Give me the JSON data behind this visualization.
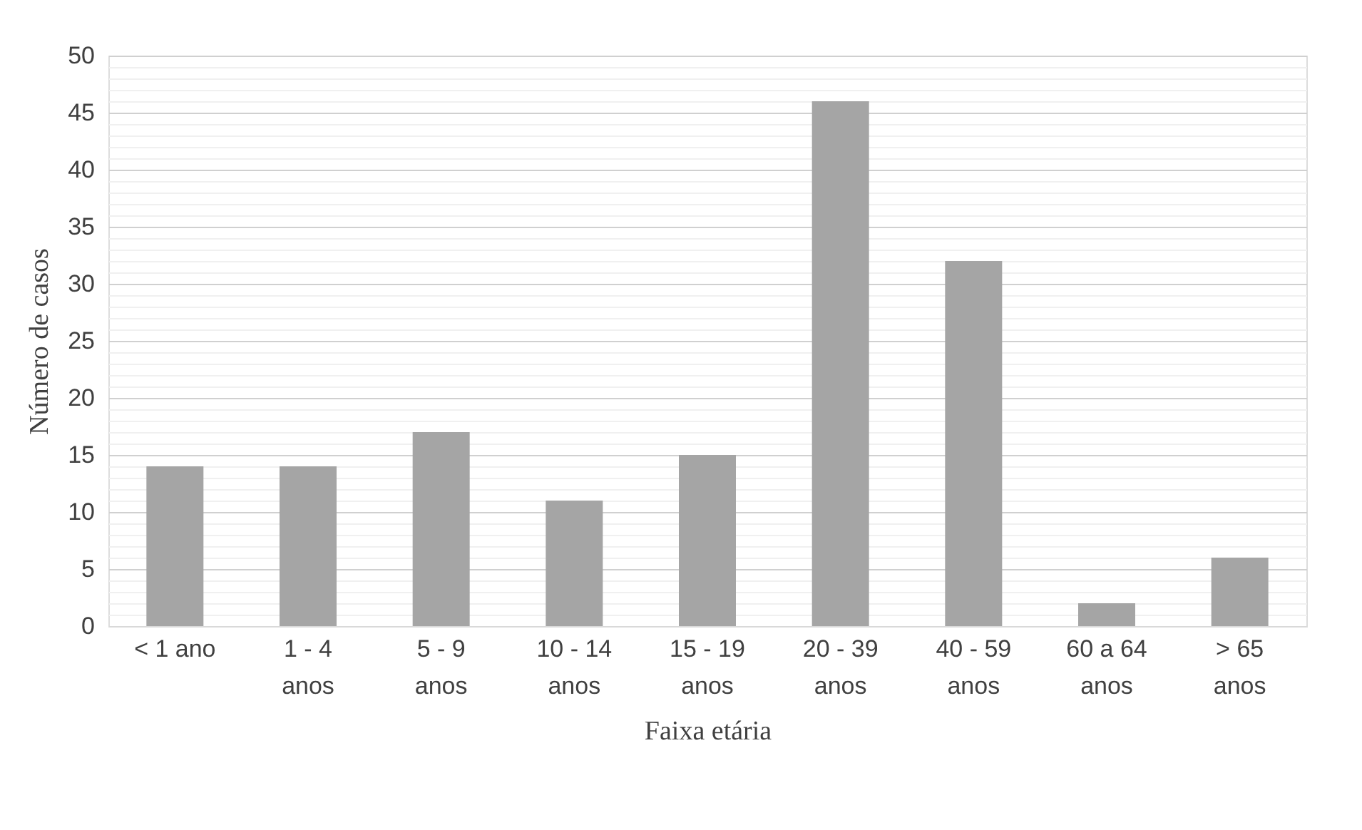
{
  "chart_data": {
    "type": "bar",
    "xlabel": "Faixa etária",
    "ylabel": "Número de casos",
    "categories": [
      "< 1 ano",
      "1 - 4 anos",
      "5 - 9 anos",
      "10 - 14 anos",
      "15 - 19 anos",
      "20 - 39 anos",
      "40 - 59 anos",
      "60 a 64 anos",
      "> 65 anos"
    ],
    "values": [
      14,
      14,
      17,
      11,
      15,
      46,
      32,
      2,
      6
    ],
    "color": "#a5a5a5",
    "ylim": [
      0,
      50
    ],
    "yticks": [
      0,
      5,
      10,
      15,
      20,
      25,
      30,
      35,
      40,
      45,
      50
    ],
    "grid": "y"
  }
}
